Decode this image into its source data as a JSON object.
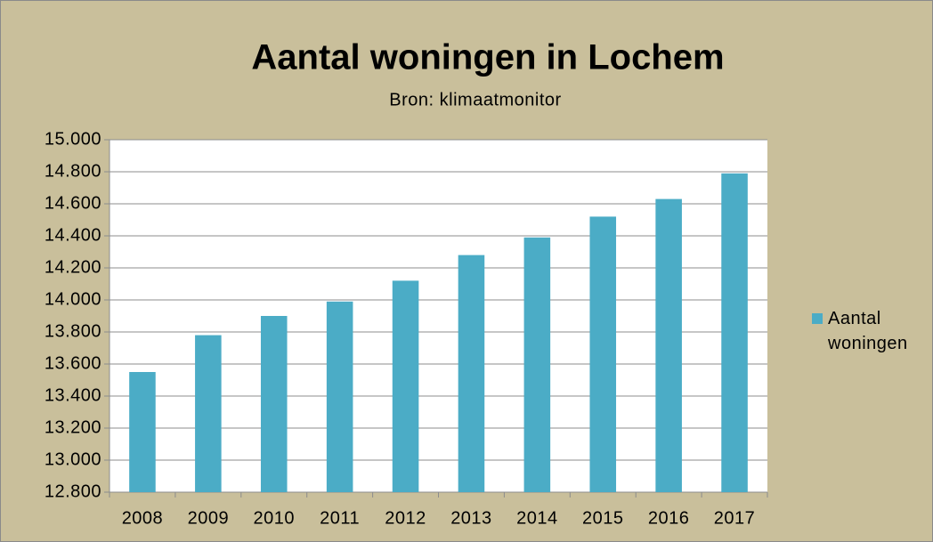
{
  "chart_data": {
    "type": "bar",
    "title": "Aantal woningen in Lochem",
    "subtitle": "Bron: klimaatmonitor",
    "categories": [
      "2008",
      "2009",
      "2010",
      "2011",
      "2012",
      "2013",
      "2014",
      "2015",
      "2016",
      "2017"
    ],
    "series": [
      {
        "name": "Aantal woningen",
        "color": "#4bacc6",
        "values": [
          13550,
          13780,
          13900,
          13990,
          14120,
          14280,
          14390,
          14520,
          14630,
          14790
        ]
      }
    ],
    "ylim": [
      12800,
      15000
    ],
    "yticks": [
      {
        "value": 12800,
        "label": "12.800"
      },
      {
        "value": 13000,
        "label": "13.000"
      },
      {
        "value": 13200,
        "label": "13.200"
      },
      {
        "value": 13400,
        "label": "13.400"
      },
      {
        "value": 13600,
        "label": "13.600"
      },
      {
        "value": 13800,
        "label": "13.800"
      },
      {
        "value": 14000,
        "label": "14.000"
      },
      {
        "value": 14200,
        "label": "14.200"
      },
      {
        "value": 14400,
        "label": "14.400"
      },
      {
        "value": 14600,
        "label": "14.600"
      },
      {
        "value": 14800,
        "label": "14.800"
      },
      {
        "value": 15000,
        "label": "15.000"
      }
    ],
    "grid": true,
    "legend": "right"
  }
}
